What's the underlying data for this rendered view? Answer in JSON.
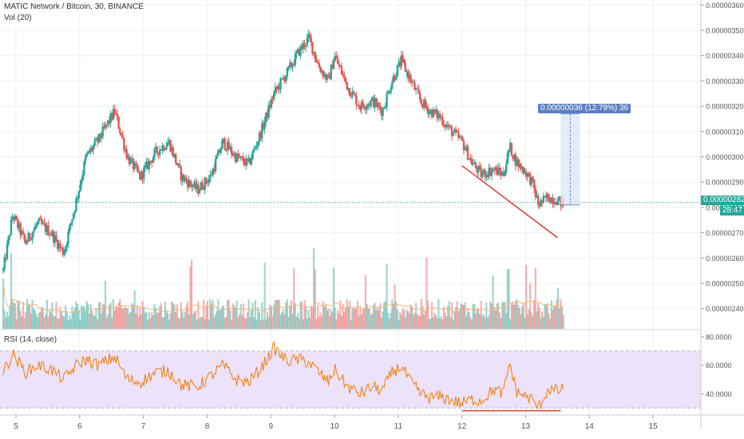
{
  "header": {
    "symbol_title": "MATIC Network / Bitcoin, 30, BINANCE",
    "volume_label": "Vol (20)"
  },
  "rsi_panel": {
    "label": "RSI (14, close)",
    "axis_ticks": [
      "80.0000",
      "60.0000",
      "40.0000"
    ],
    "tick_values": [
      80,
      60,
      40
    ],
    "band_upper": 70,
    "band_lower": 30,
    "ylim": [
      25,
      85
    ]
  },
  "measure_tool": {
    "label": "0.00000036 (12.79%) 36"
  },
  "price_axis": {
    "ticks": [
      "0.00000360",
      "0.00000350",
      "0.00000340",
      "0.00000330",
      "0.00000320",
      "0.00000310",
      "0.00000300",
      "0.00000290",
      "0.00000280",
      "0.00000270",
      "0.00000260",
      "0.00000250",
      "0.00000240"
    ],
    "tick_values": [
      3.6e-06,
      3.5e-06,
      3.4e-06,
      3.3e-06,
      3.2e-06,
      3.1e-06,
      3e-06,
      2.9e-06,
      2.8e-06,
      2.7e-06,
      2.6e-06,
      2.5e-06,
      2.4e-06
    ],
    "last_price_label": "0.00000282",
    "countdown_label": "28:47"
  },
  "time_axis": {
    "ticks": [
      "5",
      "6",
      "7",
      "8",
      "9",
      "10",
      "11",
      "12",
      "13",
      "14",
      "15"
    ],
    "tick_values": [
      5,
      6,
      7,
      8,
      9,
      10,
      11,
      12,
      13,
      14,
      15
    ]
  },
  "colors": {
    "up": "#26a69a",
    "down": "#ef5350",
    "rsi_line": "#f57c00",
    "rsi_band": "#e9ddf8",
    "trendline": "#e53935",
    "measure_fill": "#dbe9f8",
    "measure_label_bg": "#5b7fc0",
    "last_price_bg": "#26a69a",
    "volume_ma": "#f5b97b"
  },
  "chart_data": [
    {
      "type": "candlestick",
      "title": "MATIC Network / Bitcoin, 30, BINANCE",
      "x_axis": "day of month",
      "xlim": [
        4.75,
        15.75
      ],
      "ylim": [
        2.32e-06,
        3.62e-06
      ],
      "last_price": 2.82e-06,
      "anchors": [
        [
          4.8,
          2.55e-06
        ],
        [
          4.95,
          2.77e-06
        ],
        [
          5.15,
          2.66e-06
        ],
        [
          5.35,
          2.74e-06
        ],
        [
          5.55,
          2.7e-06
        ],
        [
          5.75,
          2.62e-06
        ],
        [
          5.95,
          2.83e-06
        ],
        [
          6.1,
          3e-06
        ],
        [
          6.3,
          3.07e-06
        ],
        [
          6.55,
          3.18e-06
        ],
        [
          6.75,
          3e-06
        ],
        [
          6.95,
          2.92e-06
        ],
        [
          7.2,
          3.02e-06
        ],
        [
          7.4,
          3.06e-06
        ],
        [
          7.6,
          2.92e-06
        ],
        [
          7.85,
          2.87e-06
        ],
        [
          8.05,
          2.92e-06
        ],
        [
          8.25,
          3.06e-06
        ],
        [
          8.45,
          3e-06
        ],
        [
          8.65,
          2.97e-06
        ],
        [
          8.85,
          3.1e-06
        ],
        [
          9.05,
          3.25e-06
        ],
        [
          9.25,
          3.33e-06
        ],
        [
          9.45,
          3.42e-06
        ],
        [
          9.6,
          3.47e-06
        ],
        [
          9.75,
          3.36e-06
        ],
        [
          9.9,
          3.3e-06
        ],
        [
          10.0,
          3.4e-06
        ],
        [
          10.2,
          3.28e-06
        ],
        [
          10.4,
          3.2e-06
        ],
        [
          10.6,
          3.22e-06
        ],
        [
          10.75,
          3.18e-06
        ],
        [
          10.9,
          3.3e-06
        ],
        [
          11.05,
          3.38e-06
        ],
        [
          11.2,
          3.3e-06
        ],
        [
          11.35,
          3.22e-06
        ],
        [
          11.5,
          3.18e-06
        ],
        [
          11.65,
          3.16e-06
        ],
        [
          11.8,
          3.11e-06
        ],
        [
          12.0,
          3.06e-06
        ],
        [
          12.15,
          2.98e-06
        ],
        [
          12.3,
          2.93e-06
        ],
        [
          12.5,
          2.95e-06
        ],
        [
          12.65,
          2.93e-06
        ],
        [
          12.75,
          3.04e-06
        ],
        [
          12.85,
          2.98e-06
        ],
        [
          13.0,
          2.94e-06
        ],
        [
          13.1,
          2.9e-06
        ],
        [
          13.2,
          2.81e-06
        ],
        [
          13.35,
          2.84e-06
        ],
        [
          13.5,
          2.83e-06
        ],
        [
          13.6,
          2.81e-06
        ]
      ],
      "annotations": {
        "price_trendline": [
          [
            12.0,
            2.965e-06
          ],
          [
            13.5,
            2.68e-06
          ]
        ],
        "measure_range": {
          "x": 13.7,
          "from": 2.81e-06,
          "to": 3.17e-06
        }
      }
    },
    {
      "type": "line",
      "title": "RSI (14, close)",
      "ylim": [
        25,
        85
      ],
      "bands": [
        30,
        70
      ],
      "anchors": [
        [
          4.8,
          55
        ],
        [
          4.95,
          68
        ],
        [
          5.15,
          55
        ],
        [
          5.35,
          60
        ],
        [
          5.55,
          57
        ],
        [
          5.75,
          50
        ],
        [
          5.95,
          60
        ],
        [
          6.1,
          64
        ],
        [
          6.3,
          60
        ],
        [
          6.55,
          66
        ],
        [
          6.75,
          50
        ],
        [
          6.95,
          48
        ],
        [
          7.2,
          55
        ],
        [
          7.4,
          56
        ],
        [
          7.6,
          46
        ],
        [
          7.85,
          45
        ],
        [
          8.05,
          52
        ],
        [
          8.25,
          60
        ],
        [
          8.45,
          50
        ],
        [
          8.65,
          48
        ],
        [
          8.85,
          58
        ],
        [
          9.05,
          72
        ],
        [
          9.25,
          63
        ],
        [
          9.45,
          64
        ],
        [
          9.6,
          62
        ],
        [
          9.75,
          55
        ],
        [
          9.9,
          48
        ],
        [
          10.0,
          57
        ],
        [
          10.2,
          45
        ],
        [
          10.4,
          40
        ],
        [
          10.6,
          45
        ],
        [
          10.75,
          42
        ],
        [
          10.9,
          55
        ],
        [
          11.05,
          59
        ],
        [
          11.2,
          48
        ],
        [
          11.35,
          40
        ],
        [
          11.5,
          37
        ],
        [
          11.65,
          38
        ],
        [
          11.8,
          36
        ],
        [
          12.0,
          33
        ],
        [
          12.15,
          36
        ],
        [
          12.3,
          35
        ],
        [
          12.5,
          43
        ],
        [
          12.65,
          40
        ],
        [
          12.75,
          62
        ],
        [
          12.85,
          42
        ],
        [
          13.0,
          38
        ],
        [
          13.1,
          36
        ],
        [
          13.2,
          30
        ],
        [
          13.35,
          43
        ],
        [
          13.5,
          42
        ],
        [
          13.6,
          43
        ]
      ],
      "annotations": {
        "rsi_trendline": [
          [
            12.0,
            28
          ],
          [
            13.55,
            28
          ]
        ]
      }
    }
  ]
}
